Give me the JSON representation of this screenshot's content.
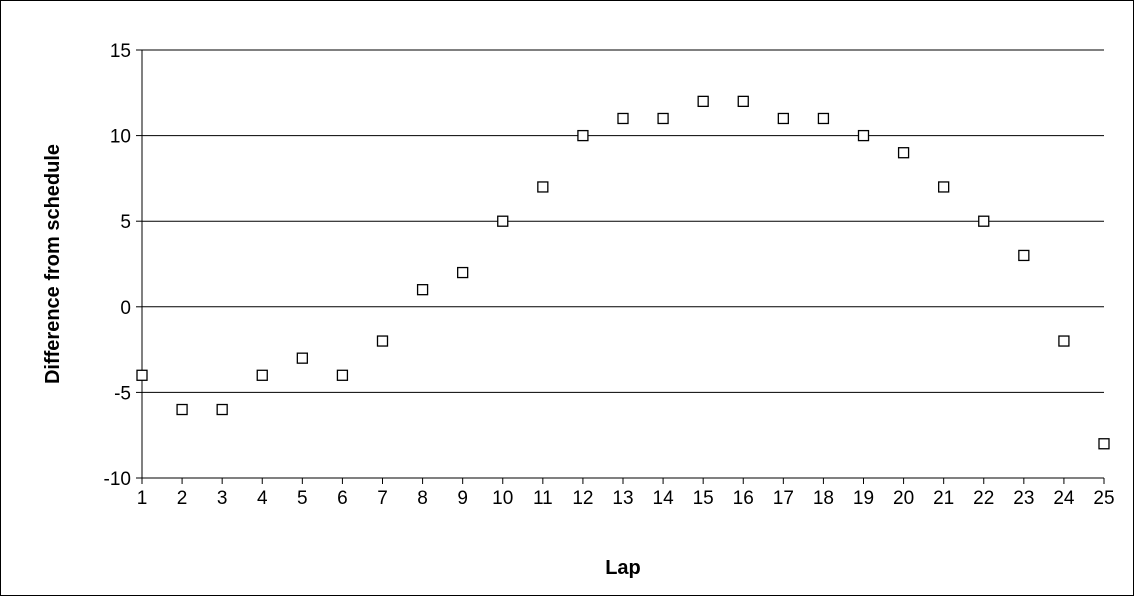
{
  "chart_data": {
    "type": "scatter",
    "title": "",
    "xlabel": "Lap",
    "ylabel": "Difference from schedule",
    "x": [
      1,
      2,
      3,
      4,
      5,
      6,
      7,
      8,
      9,
      10,
      11,
      12,
      13,
      14,
      15,
      16,
      17,
      18,
      19,
      20,
      21,
      22,
      23,
      24,
      25
    ],
    "y": [
      -4,
      -6,
      -6,
      -4,
      -3,
      -4,
      -2,
      1,
      2,
      5,
      7,
      10,
      11,
      11,
      12,
      12,
      11,
      11,
      10,
      9,
      7,
      5,
      3,
      -2,
      -8
    ],
    "x_ticks": [
      "1",
      "2",
      "3",
      "4",
      "5",
      "6",
      "7",
      "8",
      "9",
      "10",
      "11",
      "12",
      "13",
      "14",
      "15",
      "16",
      "17",
      "18",
      "19",
      "20",
      "21",
      "22",
      "23",
      "24",
      "25"
    ],
    "y_ticks": [
      15,
      10,
      5,
      0,
      -5,
      -10
    ],
    "xlim": [
      1,
      25
    ],
    "ylim": [
      -10,
      15
    ],
    "grid": "horizontal",
    "legend": "none",
    "marker": "open-square",
    "colors": {
      "marker": "#000000",
      "grid": "#000000",
      "background": "#ffffff"
    }
  }
}
